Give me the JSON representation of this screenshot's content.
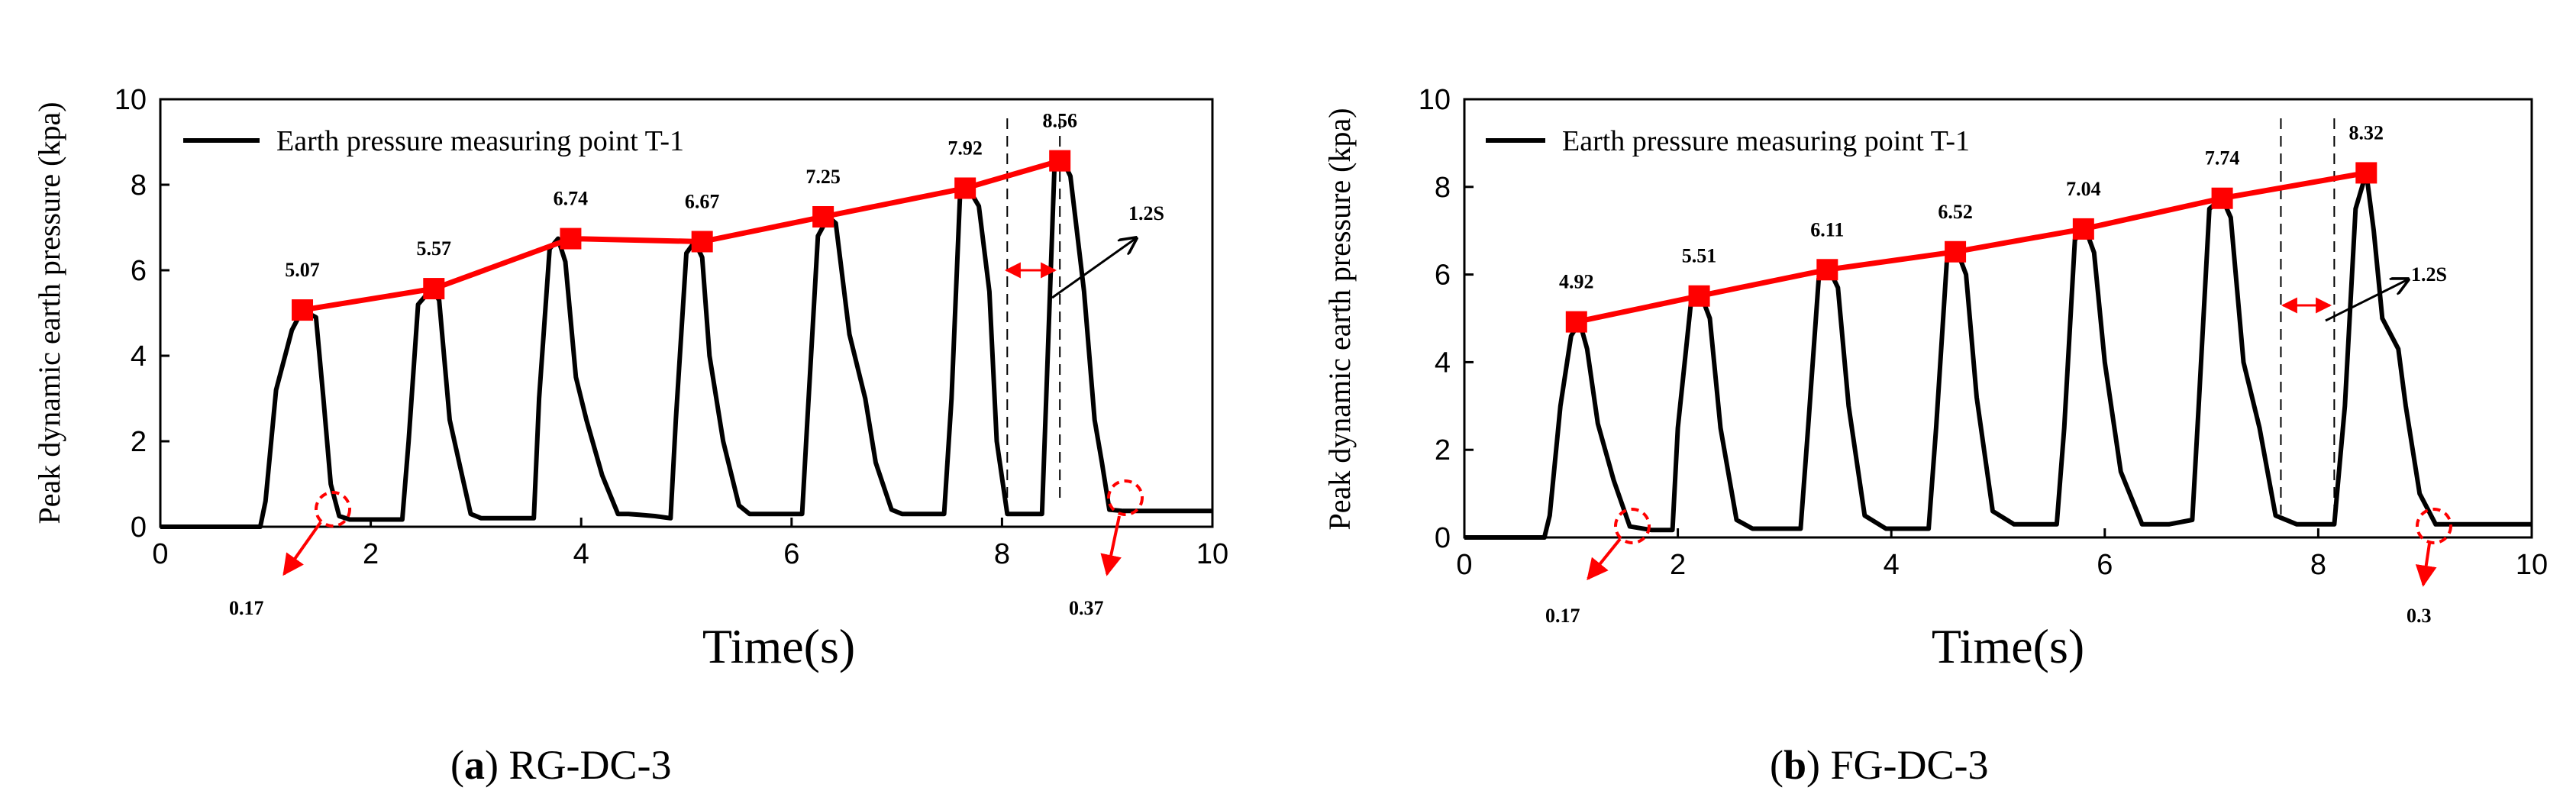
{
  "colors": {
    "pressure_line": "#000000",
    "peak_line": "#ff0000",
    "marker": "#ff0000",
    "annotation": "#ff0000"
  },
  "chart_data": [
    {
      "type": "line",
      "panel_label": "a",
      "caption": "RG-DC-3",
      "legend": "Earth pressure measuring point T-1",
      "xlabel": "Time(s)",
      "ylabel": "Peak dynamic earth pressure (kpa)",
      "xlim": [
        0,
        10
      ],
      "ylim": [
        0,
        10
      ],
      "xticks": [
        "0",
        "2",
        "4",
        "6",
        "8",
        "10"
      ],
      "yticks": [
        "0",
        "2",
        "4",
        "6",
        "8",
        "10"
      ],
      "peaks": {
        "x": [
          1.35,
          2.6,
          3.9,
          5.15,
          6.3,
          7.65,
          8.55
        ],
        "values": [
          5.07,
          5.57,
          6.74,
          6.67,
          7.25,
          7.92,
          8.56
        ],
        "labels": [
          "5.07",
          "5.57",
          "6.74",
          "6.67",
          "7.25",
          "7.92",
          "8.56"
        ]
      },
      "pressure_series": {
        "name": "Earth pressure measuring point T-1",
        "x": [
          0,
          0.95,
          1.0,
          1.1,
          1.25,
          1.35,
          1.48,
          1.55,
          1.62,
          1.7,
          1.8,
          2.3,
          2.36,
          2.45,
          2.58,
          2.65,
          2.75,
          2.85,
          2.95,
          3.05,
          3.2,
          3.55,
          3.6,
          3.7,
          3.78,
          3.85,
          3.95,
          4.05,
          4.2,
          4.35,
          4.45,
          4.55,
          4.7,
          4.85,
          4.9,
          5.0,
          5.08,
          5.15,
          5.22,
          5.35,
          5.5,
          5.6,
          5.72,
          5.9,
          6.1,
          6.15,
          6.25,
          6.35,
          6.42,
          6.55,
          6.7,
          6.8,
          6.95,
          7.05,
          7.3,
          7.45,
          7.52,
          7.6,
          7.68,
          7.78,
          7.88,
          7.95,
          8.05,
          8.2,
          8.38,
          8.42,
          8.5,
          8.58,
          8.65,
          8.78,
          8.88,
          8.95,
          9.02,
          9.15,
          10
        ],
        "y": [
          0,
          0,
          0.6,
          3.2,
          4.6,
          5.07,
          4.9,
          3.0,
          1.0,
          0.25,
          0.17,
          0.17,
          2.0,
          5.2,
          5.57,
          5.3,
          2.5,
          1.4,
          0.3,
          0.2,
          0.2,
          0.2,
          3.0,
          6.5,
          6.74,
          6.2,
          3.5,
          2.5,
          1.2,
          0.3,
          0.3,
          0.28,
          0.25,
          0.2,
          2.5,
          6.4,
          6.67,
          6.3,
          4.0,
          2.0,
          0.5,
          0.3,
          0.3,
          0.3,
          0.3,
          2.5,
          6.8,
          7.25,
          7.1,
          4.5,
          3.0,
          1.5,
          0.4,
          0.3,
          0.3,
          0.3,
          3.0,
          7.7,
          7.92,
          7.5,
          5.5,
          2.0,
          0.3,
          0.3,
          0.3,
          3.0,
          8.5,
          8.56,
          8.2,
          5.5,
          2.5,
          1.5,
          0.4,
          0.37,
          0.37
        ]
      },
      "annotations": {
        "start_value": "0.17",
        "end_value": "0.37",
        "interval": "1.2S"
      },
      "dashed_x": [
        8.05,
        8.55
      ]
    },
    {
      "type": "line",
      "panel_label": "b",
      "caption": "FG-DC-3",
      "legend": "Earth pressure measuring point T-1",
      "xlabel": "Time(s)",
      "ylabel": "Peak dynamic earth pressure (kpa)",
      "xlim": [
        0,
        10
      ],
      "ylim": [
        0,
        10
      ],
      "xticks": [
        "0",
        "2",
        "4",
        "6",
        "8",
        "10"
      ],
      "yticks": [
        "0",
        "2",
        "4",
        "6",
        "8",
        "10"
      ],
      "peaks": {
        "x": [
          1.05,
          2.2,
          3.4,
          4.6,
          5.8,
          7.1,
          8.45
        ],
        "values": [
          4.92,
          5.51,
          6.11,
          6.52,
          7.04,
          7.74,
          8.32
        ],
        "labels": [
          "4.92",
          "5.51",
          "6.11",
          "6.52",
          "7.04",
          "7.74",
          "8.32"
        ]
      },
      "pressure_series": {
        "name": "Earth pressure measuring point T-1",
        "x": [
          0,
          0.75,
          0.8,
          0.9,
          1.0,
          1.08,
          1.15,
          1.25,
          1.4,
          1.55,
          1.75,
          1.95,
          2.0,
          2.12,
          2.22,
          2.3,
          2.4,
          2.55,
          2.7,
          2.95,
          3.15,
          3.22,
          3.32,
          3.42,
          3.5,
          3.6,
          3.75,
          3.95,
          4.15,
          4.35,
          4.42,
          4.52,
          4.62,
          4.7,
          4.8,
          4.95,
          5.15,
          5.35,
          5.55,
          5.62,
          5.72,
          5.82,
          5.9,
          6.0,
          6.15,
          6.35,
          6.6,
          6.82,
          6.88,
          6.98,
          7.1,
          7.18,
          7.3,
          7.45,
          7.6,
          7.8,
          8.15,
          8.25,
          8.35,
          8.45,
          8.52,
          8.6,
          8.75,
          8.82,
          8.95,
          9.1,
          9.25,
          10
        ],
        "y": [
          0,
          0,
          0.5,
          3.0,
          4.6,
          4.92,
          4.3,
          2.6,
          1.3,
          0.25,
          0.17,
          0.17,
          2.5,
          5.3,
          5.51,
          5.0,
          2.5,
          0.4,
          0.2,
          0.2,
          0.2,
          2.5,
          5.9,
          6.11,
          5.7,
          3.0,
          0.5,
          0.2,
          0.2,
          0.2,
          2.5,
          6.3,
          6.52,
          6.0,
          3.2,
          0.6,
          0.3,
          0.3,
          0.3,
          2.5,
          6.8,
          7.04,
          6.5,
          4.0,
          1.5,
          0.3,
          0.3,
          0.4,
          3.0,
          7.5,
          7.74,
          7.3,
          4.0,
          2.5,
          0.5,
          0.3,
          0.3,
          3.0,
          7.5,
          8.32,
          7.0,
          5.0,
          4.3,
          3.0,
          1.0,
          0.3,
          0.3,
          0.3
        ]
      },
      "annotations": {
        "start_value": "0.17",
        "end_value": "0.3",
        "interval": "1.2S"
      },
      "dashed_x": [
        7.65,
        8.15
      ]
    }
  ]
}
